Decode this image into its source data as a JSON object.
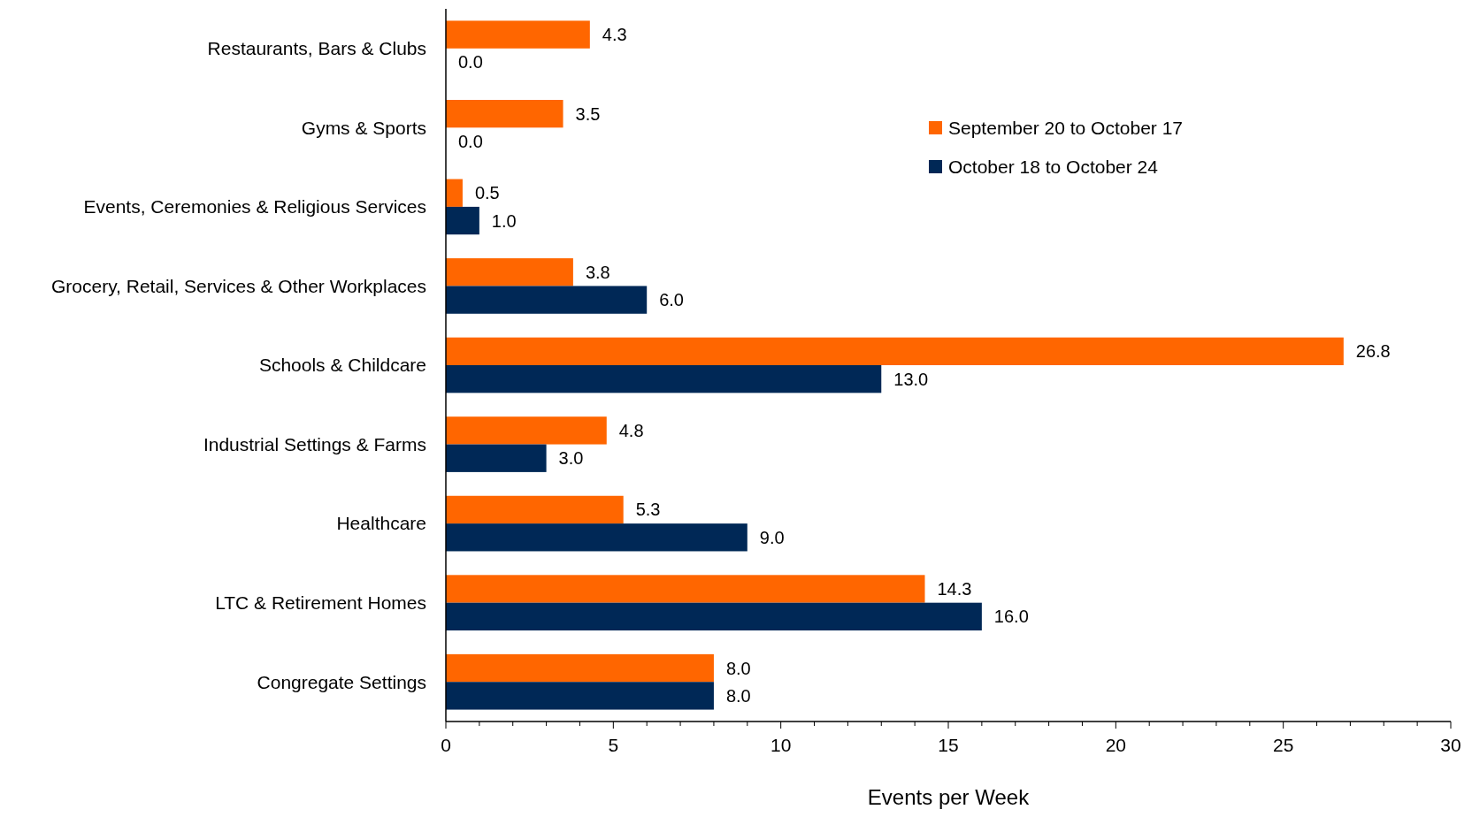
{
  "chart_data": {
    "type": "bar",
    "orientation": "horizontal",
    "xlabel": "Events per Week",
    "categories": [
      "Restaurants, Bars & Clubs",
      "Gyms & Sports",
      "Events, Ceremonies & Religious Services",
      "Grocery, Retail, Services & Other Workplaces",
      "Schools & Childcare",
      "Industrial Settings & Farms",
      "Healthcare",
      "LTC & Retirement Homes",
      "Congregate Settings"
    ],
    "series": [
      {
        "name": "September 20 to October 17",
        "color": "#ff6600",
        "values": [
          4.3,
          3.5,
          0.5,
          3.8,
          26.8,
          4.8,
          5.3,
          14.3,
          8.0
        ],
        "value_labels": [
          "4.3",
          "3.5",
          "0.5",
          "3.8",
          "26.8",
          "4.8",
          "5.3",
          "14.3",
          "8.0"
        ]
      },
      {
        "name": "October 18 to October 24",
        "color": "#002856",
        "values": [
          0,
          0,
          1,
          6,
          13,
          3,
          9,
          16,
          8
        ],
        "value_labels": [
          "0.0",
          "0.0",
          "1.0",
          "6.0",
          "13.0",
          "3.0",
          "9.0",
          "16.0",
          "8.0"
        ]
      }
    ],
    "xlim": [
      0,
      30
    ],
    "xticks": [
      0,
      {
        "value": 1,
        "label": null
      },
      {
        "value": 2,
        "label": null
      },
      {
        "value": 3,
        "label": null
      },
      {
        "value": 4,
        "label": null
      },
      5,
      {
        "value": 6,
        "label": null
      },
      {
        "value": 7,
        "label": null
      },
      {
        "value": 8,
        "label": null
      },
      {
        "value": 9,
        "label": null
      },
      10,
      {
        "value": 11,
        "label": null
      },
      {
        "value": 12,
        "label": null
      },
      {
        "value": 13,
        "label": null
      },
      {
        "value": 14,
        "label": null
      },
      15,
      {
        "value": 16,
        "label": null
      },
      {
        "value": 17,
        "label": null
      },
      {
        "value": 18,
        "label": null
      },
      {
        "value": 19,
        "label": null
      },
      20,
      {
        "value": 21,
        "label": null
      },
      {
        "value": 22,
        "label": null
      },
      {
        "value": 23,
        "label": null
      },
      {
        "value": 24,
        "label": null
      },
      25,
      {
        "value": 26,
        "label": null
      },
      {
        "value": 27,
        "label": null
      },
      {
        "value": 28,
        "label": null
      },
      {
        "value": 29,
        "label": null
      },
      30
    ],
    "grid": false,
    "legend": "top right"
  }
}
